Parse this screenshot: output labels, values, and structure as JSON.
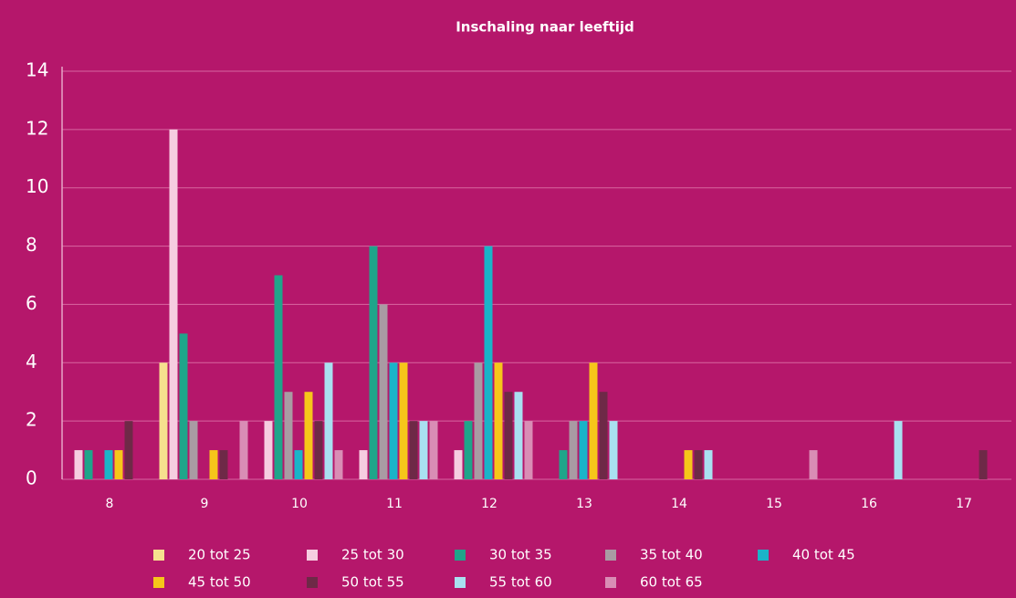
{
  "chart_data": {
    "type": "bar",
    "title": "Inschaling naar leeftijd",
    "categories": [
      "8",
      "9",
      "10",
      "11",
      "12",
      "13",
      "14",
      "15",
      "16",
      "17"
    ],
    "series": [
      {
        "name": "20 tot 25",
        "color": "#f6e08e",
        "values": [
          0,
          4,
          0,
          0,
          0,
          0,
          0,
          0,
          0,
          0
        ]
      },
      {
        "name": "25 tot 30",
        "color": "#f6cde0",
        "values": [
          1,
          12,
          2,
          1,
          1,
          0,
          0,
          0,
          0,
          0
        ]
      },
      {
        "name": "30 tot 35",
        "color": "#1fa58a",
        "values": [
          1,
          5,
          7,
          8,
          2,
          1,
          0,
          0,
          0,
          0
        ]
      },
      {
        "name": "35 tot 40",
        "color": "#a99ba3",
        "values": [
          0,
          2,
          3,
          6,
          4,
          2,
          0,
          0,
          0,
          0
        ]
      },
      {
        "name": "40 tot 45",
        "color": "#1ab4c8",
        "values": [
          1,
          0,
          1,
          4,
          8,
          2,
          0,
          0,
          0,
          0
        ]
      },
      {
        "name": "45 tot 50",
        "color": "#f6c61a",
        "values": [
          1,
          1,
          3,
          4,
          4,
          4,
          1,
          0,
          0,
          0
        ]
      },
      {
        "name": "50 tot 55",
        "color": "#6e2947",
        "values": [
          2,
          1,
          2,
          2,
          3,
          3,
          1,
          0,
          0,
          1
        ]
      },
      {
        "name": "55 tot 60",
        "color": "#a9e0f0",
        "values": [
          0,
          0,
          4,
          2,
          3,
          2,
          1,
          0,
          2,
          0
        ]
      },
      {
        "name": "60 tot 65",
        "color": "#d98db5",
        "values": [
          0,
          2,
          1,
          2,
          2,
          0,
          0,
          1,
          0,
          0
        ]
      }
    ],
    "ylim": [
      0,
      14
    ],
    "yticks": [
      0,
      2,
      4,
      6,
      8,
      10,
      12,
      14
    ],
    "grid": true,
    "legend": "bottom"
  }
}
